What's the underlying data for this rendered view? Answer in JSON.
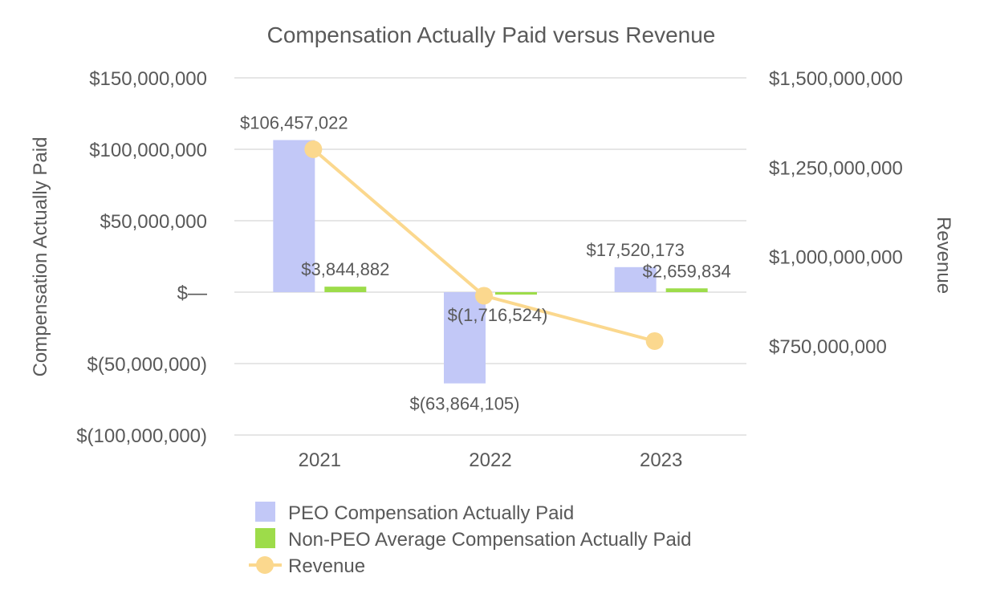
{
  "chart_data": {
    "type": "bar",
    "title": "Compensation Actually Paid versus Revenue",
    "categories": [
      "2021",
      "2022",
      "2023"
    ],
    "left_axis": {
      "label": "Compensation Actually Paid",
      "ylim": [
        -100000000,
        150000000
      ],
      "ticks": [
        {
          "value": 150000000,
          "label": "$150,000,000"
        },
        {
          "value": 100000000,
          "label": "$100,000,000"
        },
        {
          "value": 50000000,
          "label": "$50,000,000"
        },
        {
          "value": 0,
          "label": "$—"
        },
        {
          "value": -50000000,
          "label": "$(50,000,000)"
        },
        {
          "value": -100000000,
          "label": "$(100,000,000)"
        }
      ]
    },
    "right_axis": {
      "label": "Revenue",
      "ylim": [
        500000000,
        1500000000
      ],
      "ticks": [
        {
          "value": 1500000000,
          "label": "$1,500,000,000"
        },
        {
          "value": 1250000000,
          "label": "$1,250,000,000"
        },
        {
          "value": 1000000000,
          "label": "$1,000,000,000"
        },
        {
          "value": 750000000,
          "label": "$750,000,000"
        }
      ]
    },
    "series": [
      {
        "name": "PEO Compensation Actually Paid",
        "type": "bar",
        "axis": "left",
        "color": "#c2c8f7",
        "values": [
          106457022,
          -63864105,
          17520173
        ],
        "labels": [
          "$106,457,022",
          "$(63,864,105)",
          "$17,520,173"
        ]
      },
      {
        "name": "Non-PEO Average Compensation Actually Paid",
        "type": "bar",
        "axis": "left",
        "color": "#9ddc4a",
        "values": [
          3844882,
          -1716524,
          2659834
        ],
        "labels": [
          "$3,844,882",
          "$(1,716,524)",
          "$2,659,834"
        ]
      },
      {
        "name": "Revenue",
        "type": "line",
        "axis": "right",
        "color": "#fbd88e",
        "values": [
          1300000000,
          890000000,
          763000000
        ]
      }
    ],
    "legend": {
      "position": "bottom"
    }
  }
}
